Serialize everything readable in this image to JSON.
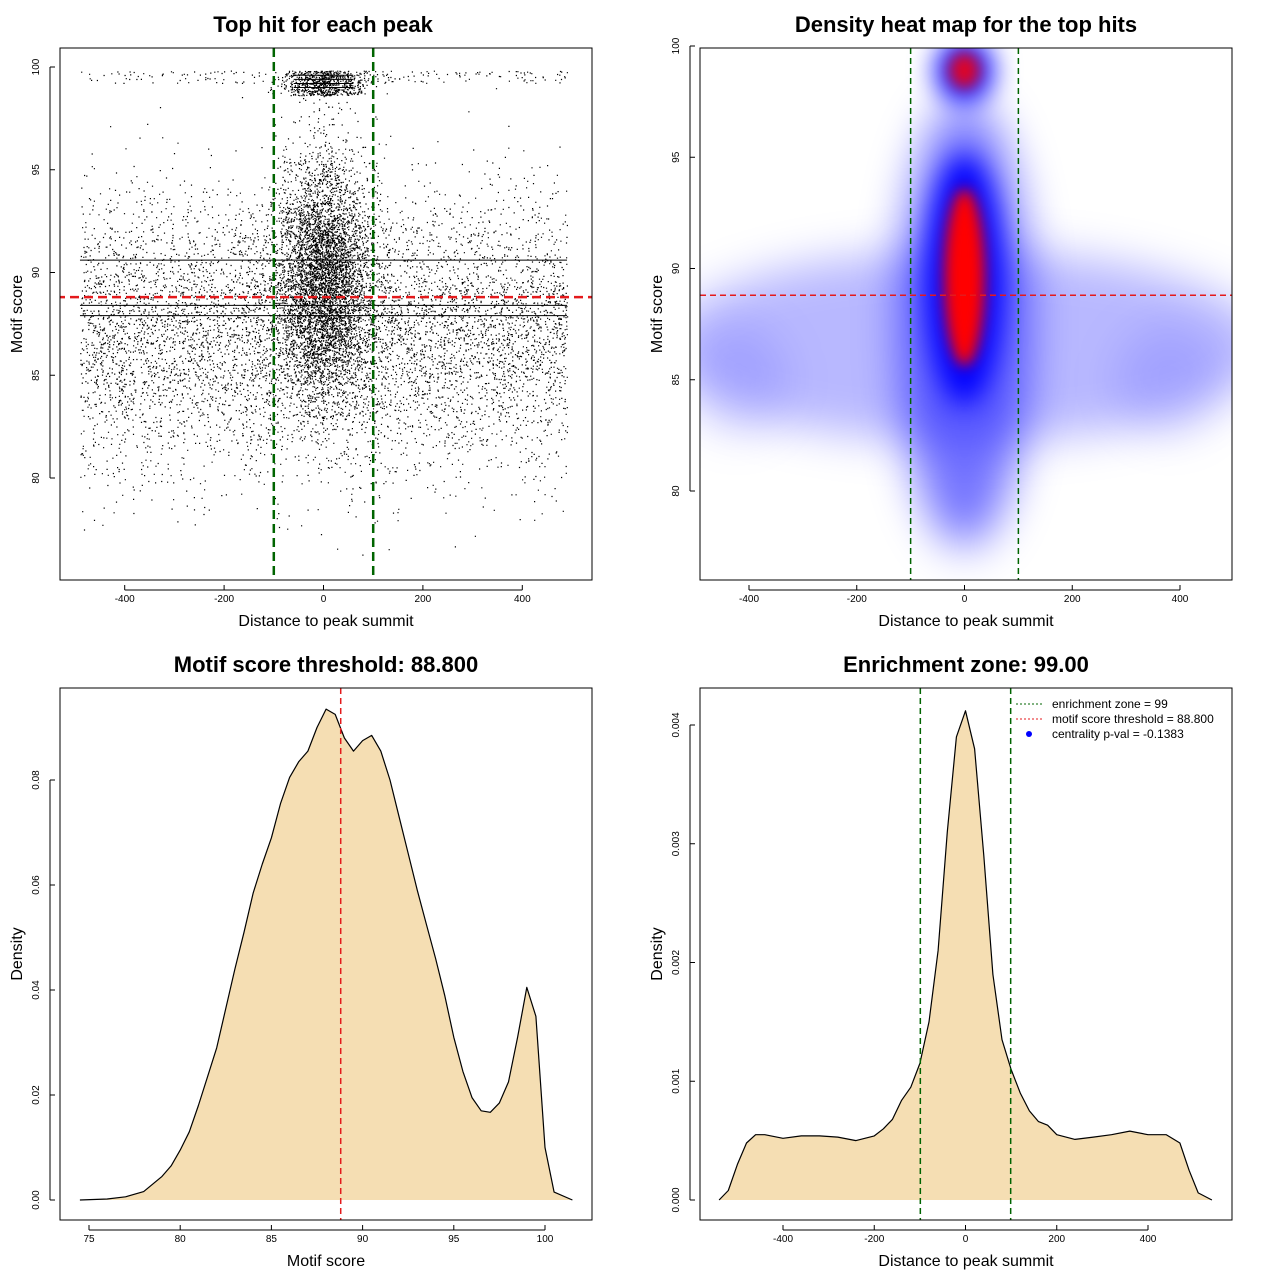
{
  "chart_data": [
    {
      "type": "scatter",
      "title": "Top hit for each peak",
      "xlabel": "Distance to peak summit",
      "ylabel": "Motif score",
      "xlim": [
        -500,
        500
      ],
      "ylim": [
        75,
        101
      ],
      "xticks": [
        "-400",
        "-200",
        "0",
        "200",
        "400"
      ],
      "yticks": [
        "80",
        "85",
        "90",
        "95",
        "100"
      ],
      "vlines": [
        -100,
        100
      ],
      "hline": 88.8,
      "colors": {
        "points": "#000000",
        "vline": "#006400",
        "hline": "#e41a1c"
      }
    },
    {
      "type": "heatmap",
      "title": "Density heat map for the top hits",
      "xlabel": "Distance to peak summit",
      "ylabel": "Motif score",
      "xlim": [
        -500,
        500
      ],
      "ylim": [
        75,
        100
      ],
      "xticks": [
        "-400",
        "-200",
        "0",
        "200",
        "400"
      ],
      "yticks": [
        "80",
        "85",
        "90",
        "95",
        "100"
      ],
      "vlines": [
        -100,
        100
      ],
      "hline": 88.8,
      "colors": {
        "low": "#ffffff",
        "mid": "#0000ff",
        "high": "#ff0000"
      }
    },
    {
      "type": "area",
      "title": "Motif score threshold: 88.800",
      "xlabel": "Motif score",
      "ylabel": "Density",
      "xlim": [
        74.5,
        101.5
      ],
      "ylim": [
        0,
        0.0955
      ],
      "xticks": [
        "75",
        "80",
        "85",
        "90",
        "95",
        "100"
      ],
      "yticks": [
        "0.00",
        "0.02",
        "0.04",
        "0.06",
        "0.08"
      ],
      "x": [
        74.5,
        76,
        77,
        78,
        79,
        79.5,
        80,
        80.5,
        81,
        81.5,
        82,
        82.5,
        83,
        83.5,
        84,
        84.5,
        85,
        85.5,
        86,
        86.5,
        87,
        87.5,
        88,
        88.5,
        89,
        89.5,
        90,
        90.5,
        91,
        91.5,
        92,
        92.5,
        93,
        93.5,
        94,
        94.5,
        95,
        95.5,
        96,
        96.5,
        97,
        97.5,
        98,
        98.5,
        99,
        99.5,
        100,
        100.5,
        101.5
      ],
      "y": [
        0.0,
        0.0002,
        0.0006,
        0.0016,
        0.0045,
        0.0065,
        0.0095,
        0.013,
        0.018,
        0.0235,
        0.029,
        0.0365,
        0.044,
        0.051,
        0.0585,
        0.064,
        0.069,
        0.0755,
        0.0805,
        0.0835,
        0.0855,
        0.09,
        0.0935,
        0.0925,
        0.088,
        0.0855,
        0.0875,
        0.0885,
        0.0855,
        0.08,
        0.073,
        0.066,
        0.059,
        0.0525,
        0.046,
        0.039,
        0.031,
        0.0245,
        0.0195,
        0.017,
        0.0167,
        0.0185,
        0.0225,
        0.031,
        0.0405,
        0.035,
        0.01,
        0.0015,
        0.0
      ],
      "vline": 88.8,
      "colors": {
        "fill": "#f5deb3",
        "line": "#000000",
        "vline": "#e41a1c"
      }
    },
    {
      "type": "area",
      "title": "Enrichment zone: 99.00",
      "xlabel": "Distance to peak summit",
      "ylabel": "Density",
      "xlim": [
        -550,
        550
      ],
      "ylim": [
        0,
        0.00418
      ],
      "xticks": [
        "-400",
        "-200",
        "0",
        "200",
        "400"
      ],
      "yticks": [
        "0.000",
        "0.001",
        "0.002",
        "0.003",
        "0.004"
      ],
      "x": [
        -540,
        -520,
        -500,
        -480,
        -460,
        -440,
        -400,
        -360,
        -320,
        -280,
        -240,
        -200,
        -180,
        -160,
        -140,
        -120,
        -100,
        -80,
        -60,
        -40,
        -20,
        0,
        20,
        40,
        60,
        80,
        100,
        120,
        140,
        160,
        180,
        200,
        240,
        280,
        320,
        360,
        400,
        440,
        470,
        490,
        510,
        540
      ],
      "y": [
        0.0,
        8e-05,
        0.0003,
        0.00048,
        0.00055,
        0.00055,
        0.00052,
        0.00054,
        0.00054,
        0.00053,
        0.0005,
        0.00054,
        0.0006,
        0.00068,
        0.00084,
        0.00095,
        0.00115,
        0.0015,
        0.0021,
        0.0031,
        0.0039,
        0.00412,
        0.0038,
        0.0029,
        0.0019,
        0.00135,
        0.0011,
        0.0009,
        0.00075,
        0.00066,
        0.00063,
        0.00055,
        0.00051,
        0.00053,
        0.00055,
        0.00058,
        0.00055,
        0.00055,
        0.00048,
        0.00025,
        6e-05,
        0.0
      ],
      "vlines": [
        -99,
        99
      ],
      "colors": {
        "fill": "#f5deb3",
        "line": "#000000",
        "vline": "#006400",
        "threshold": "#e41a1c",
        "pval": "#0000ff"
      },
      "legend": {
        "position": "top-right",
        "entries": [
          "enrichment zone = 99",
          "motif score threshold = 88.800",
          "centrality p-val = -0.1383"
        ]
      }
    }
  ]
}
